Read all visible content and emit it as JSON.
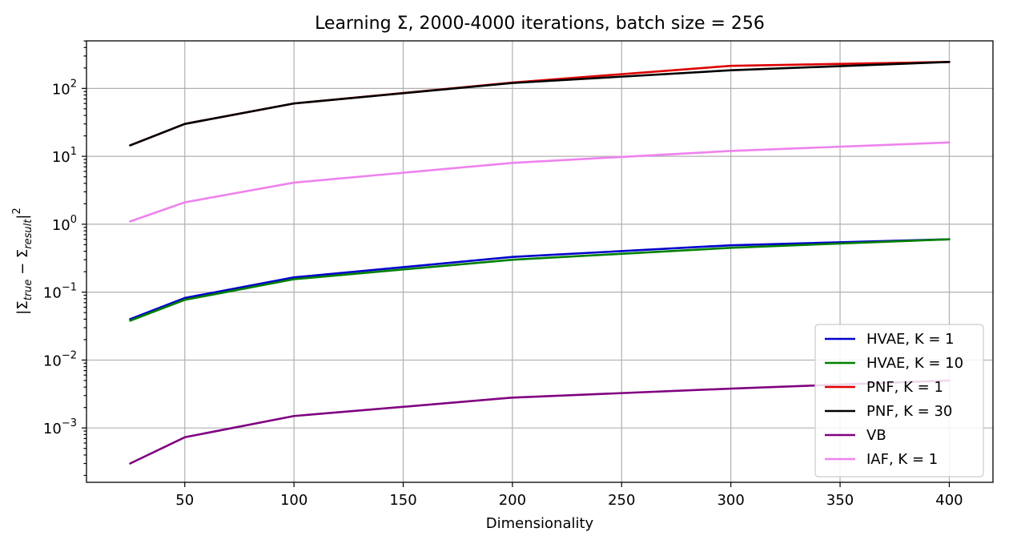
{
  "chart_data": {
    "type": "line",
    "title": "Learning Σ, 2000-4000 iterations, batch size = 256",
    "xlabel": "Dimensionality",
    "ylabel_parts": {
      "pipe_open": "|",
      "sigma1": "Σ",
      "sub1": "true",
      "minus": " − ",
      "sigma2": "Σ",
      "sub2": "result",
      "pipe_close": "|",
      "sup": "2"
    },
    "y_scale": "log",
    "xlim": [
      5,
      420
    ],
    "ylim_exponents": [
      -3.8,
      2.7
    ],
    "grid": true,
    "legend_position": "lower-right",
    "x_ticks": [
      {
        "value": 50,
        "label": "50"
      },
      {
        "value": 100,
        "label": "100"
      },
      {
        "value": 150,
        "label": "150"
      },
      {
        "value": 200,
        "label": "200"
      },
      {
        "value": 250,
        "label": "250"
      },
      {
        "value": 300,
        "label": "300"
      },
      {
        "value": 350,
        "label": "350"
      },
      {
        "value": 400,
        "label": "400"
      }
    ],
    "y_ticks": [
      {
        "exp": 2,
        "base": "10",
        "sup": "2"
      },
      {
        "exp": 1,
        "base": "10",
        "sup": "1"
      },
      {
        "exp": 0,
        "base": "10",
        "sup": "0"
      },
      {
        "exp": -1,
        "base": "10",
        "sup": "−1"
      },
      {
        "exp": -2,
        "base": "10",
        "sup": "−2"
      },
      {
        "exp": -3,
        "base": "10",
        "sup": "−3"
      }
    ],
    "x": [
      25,
      50,
      100,
      200,
      300,
      400
    ],
    "series": [
      {
        "name": "HVAE, K = 1",
        "color": "#0000cc",
        "values": [
          0.04,
          0.082,
          0.165,
          0.33,
          0.49,
          0.6
        ]
      },
      {
        "name": "HVAE, K = 10",
        "color": "#008000",
        "values": [
          0.038,
          0.077,
          0.155,
          0.3,
          0.45,
          0.6
        ]
      },
      {
        "name": "PNF, K = 1",
        "color": "#dd0000",
        "values": [
          14.5,
          30,
          60,
          122,
          215,
          245
        ]
      },
      {
        "name": "PNF, K = 30",
        "color": "#000000",
        "values": [
          14.5,
          30,
          60,
          120,
          185,
          245
        ]
      },
      {
        "name": "VB",
        "color": "#800080",
        "values": [
          0.0003,
          0.00073,
          0.0015,
          0.0028,
          0.0038,
          0.005
        ]
      },
      {
        "name": "IAF, K = 1",
        "color": "#ee82ee",
        "values": [
          1.1,
          2.1,
          4.1,
          8.0,
          12.0,
          16.0
        ]
      }
    ]
  }
}
